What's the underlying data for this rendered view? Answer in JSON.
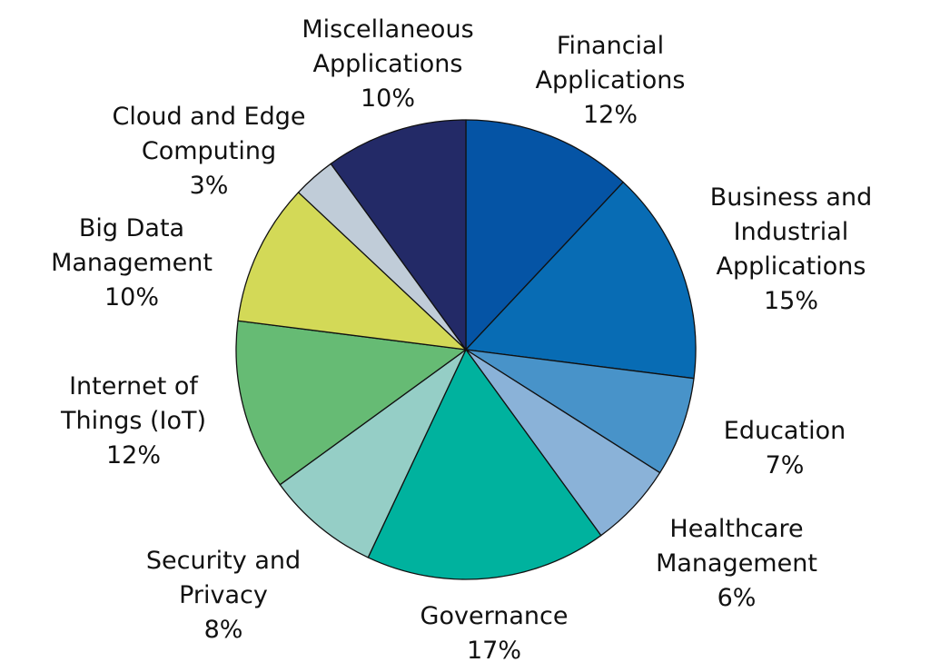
{
  "chart_data": {
    "type": "pie",
    "start_angle_deg": 90,
    "direction": "clockwise",
    "slices": [
      {
        "label_lines": [
          "Financial",
          "Applications"
        ],
        "value_label": "12%",
        "value": 12,
        "color": "#0554A5"
      },
      {
        "label_lines": [
          "Business and",
          "Industrial",
          "Applications"
        ],
        "value_label": "15%",
        "value": 15,
        "color": "#086CB4"
      },
      {
        "label_lines": [
          "Education"
        ],
        "value_label": "7%",
        "value": 7,
        "color": "#4893C9"
      },
      {
        "label_lines": [
          "Healthcare",
          "Management"
        ],
        "value_label": "6%",
        "value": 6,
        "color": "#8AB2D8"
      },
      {
        "label_lines": [
          "Governance"
        ],
        "value_label": "17%",
        "value": 17,
        "color": "#00B29E"
      },
      {
        "label_lines": [
          "Security and",
          "Privacy"
        ],
        "value_label": "8%",
        "value": 8,
        "color": "#95CEC6"
      },
      {
        "label_lines": [
          "Internet of",
          "Things (IoT)"
        ],
        "value_label": "12%",
        "value": 12,
        "color": "#66BB74"
      },
      {
        "label_lines": [
          "Big Data",
          "Management"
        ],
        "value_label": "10%",
        "value": 10,
        "color": "#D3D957"
      },
      {
        "label_lines": [
          "Cloud and Edge",
          "Computing"
        ],
        "value_label": "3%",
        "value": 3,
        "color": "#C0CCD8"
      },
      {
        "label_lines": [
          "Miscellaneous",
          "Applications"
        ],
        "value_label": "10%",
        "value": 10,
        "color": "#232A67"
      }
    ]
  }
}
